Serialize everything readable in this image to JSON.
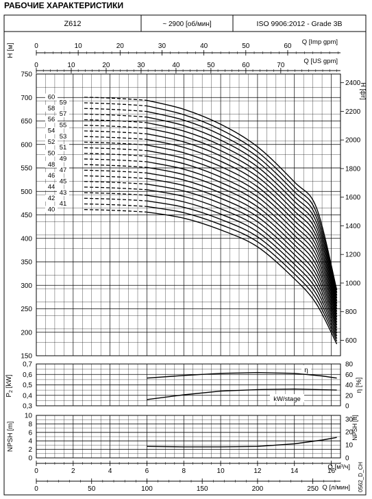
{
  "page": {
    "title": "РАБОЧИЕ ХАРАКТЕРИСТИКИ",
    "model": "Z612",
    "speed": "~ 2900 [об/мин]",
    "standard": "ISO 9906:2012 - Grade 3B",
    "code": "0562_D_CH"
  },
  "chart_data": [
    {
      "type": "line",
      "title": "H-Q",
      "top_axes": [
        {
          "label": "Q [Imp gpm]",
          "ticks": [
            0,
            10,
            20,
            30,
            40,
            50,
            60
          ],
          "range": [
            0,
            72.6
          ]
        },
        {
          "label": "Q [US gpm]",
          "ticks": [
            0,
            10,
            20,
            30,
            40,
            50,
            60,
            70
          ],
          "range": [
            0,
            87.1
          ]
        }
      ],
      "xlim": [
        0,
        16.5
      ],
      "ylabel": "H [м]",
      "ylim": [
        150,
        750
      ],
      "yticks": [
        150,
        200,
        250,
        300,
        350,
        400,
        450,
        500,
        550,
        600,
        650,
        700,
        750
      ],
      "y2label": "H [фт]",
      "y2ticks": [
        600,
        800,
        1000,
        1200,
        1400,
        1600,
        1800,
        2000,
        2200,
        2400
      ],
      "dashed_until_q": 6,
      "stage_labels": [
        "40",
        "41",
        "42",
        "43",
        "44",
        "45",
        "46",
        "47",
        "48",
        "49",
        "50",
        "51",
        "52",
        "53",
        "54",
        "55",
        "56",
        "57",
        "58",
        "59",
        "60"
      ],
      "series": [
        {
          "name": "40",
          "points": [
            [
              0,
              465
            ],
            [
              6,
              456
            ],
            [
              8,
              443
            ],
            [
              10,
              418
            ],
            [
              12,
              382
            ],
            [
              14,
              314
            ],
            [
              15.2,
              260
            ],
            [
              16.3,
              175
            ]
          ]
        },
        {
          "name": "60",
          "points": [
            [
              0,
              705
            ],
            [
              6,
              694
            ],
            [
              8,
              675
            ],
            [
              10,
              643
            ],
            [
              12,
              595
            ],
            [
              14,
              520
            ],
            [
              15.2,
              465
            ],
            [
              16.3,
              290
            ]
          ]
        }
      ]
    },
    {
      "type": "line",
      "title": "P-Q / η-Q",
      "ylabel": "P2 [kW]",
      "ylim": [
        0.3,
        0.7
      ],
      "yticks": [
        0.3,
        0.4,
        0.5,
        0.6,
        0.7
      ],
      "y2label": "η [%]",
      "y2lim": [
        0,
        80
      ],
      "y2ticks": [
        0,
        20,
        40,
        60,
        80
      ],
      "series": [
        {
          "name": "η",
          "points": [
            [
              6,
              53
            ],
            [
              8,
              58
            ],
            [
              10,
              62
            ],
            [
              12,
              63.5
            ],
            [
              14,
              62
            ],
            [
              15.5,
              57
            ],
            [
              16.3,
              53
            ]
          ]
        },
        {
          "name": "kW/stage",
          "points": [
            [
              6,
              0.36
            ],
            [
              8,
              0.405
            ],
            [
              10,
              0.44
            ],
            [
              12,
              0.455
            ],
            [
              14,
              0.46
            ],
            [
              16.3,
              0.45
            ]
          ]
        }
      ]
    },
    {
      "type": "line",
      "title": "NPSH-Q",
      "ylabel": "NPSH [m]",
      "ylim": [
        0,
        10
      ],
      "yticks": [
        0,
        2,
        4,
        6,
        8,
        10
      ],
      "y2label": "NPSH [ft]",
      "y2ticks": [
        0,
        10,
        20,
        30
      ],
      "series": [
        {
          "name": "NPSH",
          "points": [
            [
              6,
              2.7
            ],
            [
              8,
              2.6
            ],
            [
              10,
              2.6
            ],
            [
              12,
              2.7
            ],
            [
              14,
              3.3
            ],
            [
              15.5,
              4.2
            ],
            [
              16.3,
              4.8
            ]
          ]
        }
      ],
      "bottom_axes": [
        {
          "label": "Q [м³/ч]",
          "ticks": [
            0,
            2,
            4,
            6,
            8,
            10,
            12,
            14,
            16
          ],
          "range": [
            0,
            16.5
          ]
        },
        {
          "label": "Q [л/мин]",
          "ticks": [
            0,
            50,
            100,
            150,
            200,
            250
          ],
          "range": [
            0,
            275
          ]
        }
      ]
    }
  ]
}
